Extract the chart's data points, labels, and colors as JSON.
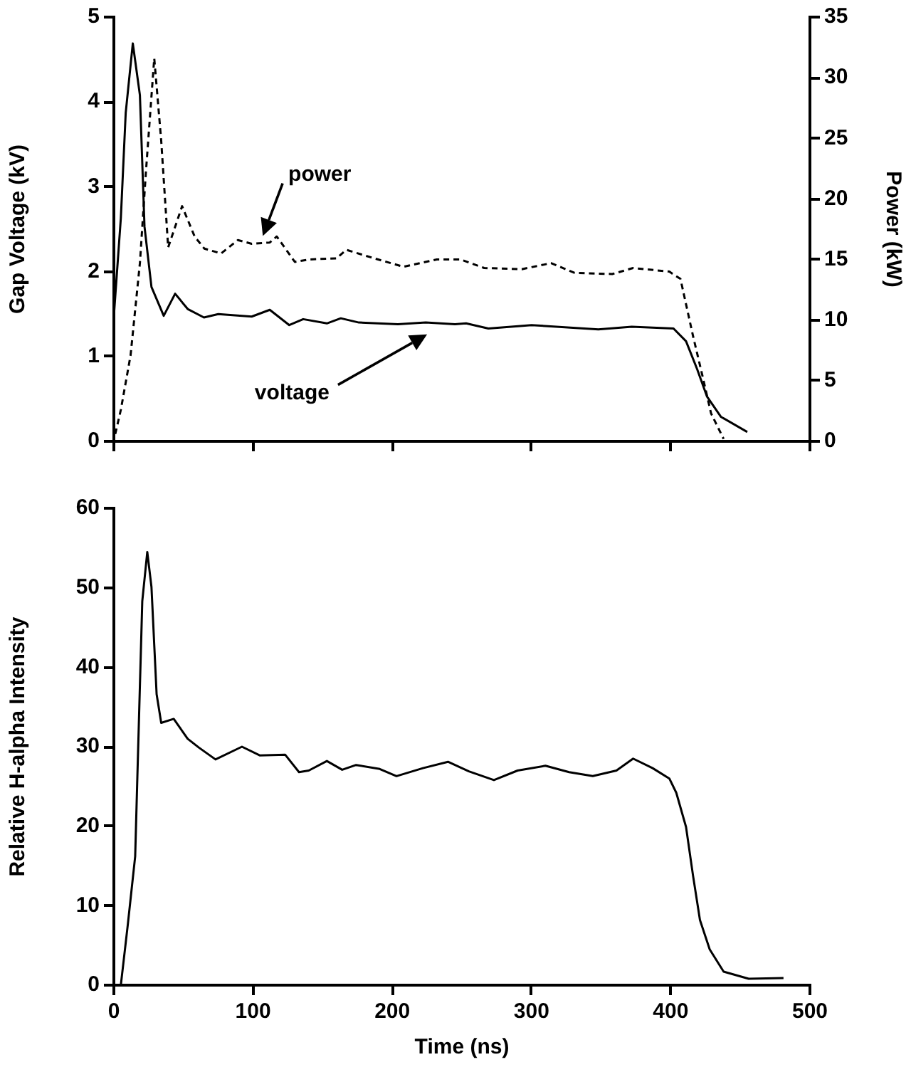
{
  "chart_data": [
    {
      "type": "line",
      "ylabel": "Gap Voltage (kV)",
      "y2label": "Power (kW)",
      "xlim": [
        0,
        500
      ],
      "xticks": [
        {
          "value": 0,
          "label": null
        },
        {
          "value": 100,
          "label": null
        },
        {
          "value": 200,
          "label": null
        },
        {
          "value": 300,
          "label": null
        },
        {
          "value": 400,
          "label": null
        },
        {
          "value": 500,
          "label": null
        }
      ],
      "ylim": [
        0,
        5
      ],
      "yticks": [
        0,
        1,
        2,
        3,
        4,
        5
      ],
      "y2lim": [
        0,
        35
      ],
      "y2ticks": [
        0,
        5,
        10,
        15,
        20,
        25,
        30,
        35
      ],
      "tick_labels": "y",
      "grid": false,
      "legend": false,
      "marker": "none",
      "series": [
        {
          "color": "#000000",
          "line_style": "solid",
          "x": [
            0,
            5,
            8.5,
            13.6,
            18.7,
            22,
            27,
            35.8,
            44,
            53,
            64.7,
            75,
            99,
            112,
            126,
            136,
            153,
            163,
            176,
            204,
            224,
            245,
            253,
            269,
            292,
            300,
            348,
            372,
            402,
            411,
            419,
            426,
            436,
            455
          ],
          "values": [
            1.48,
            2.63,
            3.87,
            4.69,
            4.08,
            2.53,
            1.82,
            1.48,
            1.74,
            1.56,
            1.46,
            1.5,
            1.47,
            1.55,
            1.37,
            1.44,
            1.39,
            1.45,
            1.4,
            1.38,
            1.4,
            1.38,
            1.39,
            1.33,
            1.36,
            1.37,
            1.32,
            1.35,
            1.33,
            1.18,
            0.85,
            0.53,
            0.29,
            0.11
          ]
        },
        {
          "color": "#000000",
          "line_style": "dashed",
          "axis": "y2",
          "x": [
            1,
            5,
            12,
            18.7,
            23,
            29,
            34,
            39,
            49,
            58,
            65,
            77,
            89,
            99,
            112,
            117,
            130,
            140,
            160,
            167,
            184,
            208,
            232,
            249,
            266,
            293,
            314,
            331,
            358,
            373,
            399,
            407,
            416,
            423,
            429,
            438
          ],
          "values": [
            0.6,
            2.6,
            7.1,
            14.7,
            22.2,
            31.6,
            24.8,
            16,
            19.4,
            16.9,
            15.9,
            15.5,
            16.6,
            16.3,
            16.4,
            16.9,
            14.8,
            15,
            15.1,
            15.8,
            15.2,
            14.4,
            15,
            15,
            14.3,
            14.2,
            14.7,
            13.9,
            13.8,
            14.3,
            14,
            13.4,
            8.7,
            5.3,
            2.3,
            0.2
          ]
        }
      ],
      "annotations": [
        {
          "text": "power",
          "x": 107,
          "y": 2.42
        },
        "voltage"
      ]
    },
    {
      "type": "line",
      "xlabel": "Time (ns)",
      "ylabel": "Relative H-alpha Intensity",
      "xlim": [
        0,
        500
      ],
      "xticks": [
        0,
        100,
        200,
        300,
        400,
        500
      ],
      "ylim": [
        0,
        60
      ],
      "yticks": [
        0,
        10,
        20,
        30,
        40,
        50,
        60
      ],
      "grid": false,
      "legend": false,
      "marker": "none",
      "series": [
        {
          "color": "#000000",
          "line_style": "solid",
          "x": [
            5,
            10,
            15.3,
            17,
            20.4,
            24,
            27,
            30.7,
            34,
            43,
            53,
            61,
            73,
            92,
            105,
            123,
            133,
            140,
            153,
            164,
            174,
            191,
            203,
            222,
            240,
            255,
            273,
            290,
            310,
            327,
            344,
            361,
            373,
            387,
            399,
            404,
            411,
            416,
            421,
            428,
            438,
            456,
            481
          ],
          "values": [
            0,
            7.6,
            16.2,
            27,
            48.3,
            54.5,
            50.1,
            36.6,
            33,
            33.5,
            31,
            29.9,
            28.4,
            30,
            28.9,
            29,
            26.8,
            27,
            28.2,
            27.1,
            27.7,
            27.2,
            26.3,
            27.3,
            28.1,
            26.9,
            25.8,
            27,
            27.6,
            26.8,
            26.3,
            27,
            28.5,
            27.3,
            26,
            24.2,
            19.9,
            13.8,
            8.2,
            4.5,
            1.7,
            0.8,
            0.9
          ]
        }
      ]
    }
  ]
}
